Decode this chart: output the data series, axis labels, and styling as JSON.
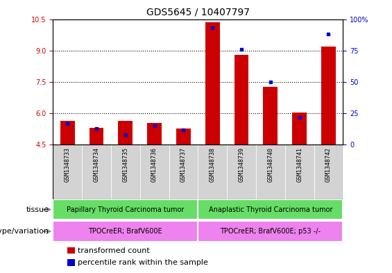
{
  "title": "GDS5645 / 10407797",
  "samples": [
    "GSM1348733",
    "GSM1348734",
    "GSM1348735",
    "GSM1348736",
    "GSM1348737",
    "GSM1348738",
    "GSM1348739",
    "GSM1348740",
    "GSM1348741",
    "GSM1348742"
  ],
  "transformed_count": [
    5.65,
    5.3,
    5.65,
    5.55,
    5.28,
    10.35,
    8.8,
    7.28,
    6.05,
    9.2
  ],
  "percentile_rank": [
    17,
    13,
    8,
    15,
    12,
    93,
    76,
    50,
    22,
    88
  ],
  "ylim": [
    4.5,
    10.5
  ],
  "yticks_left": [
    4.5,
    6.0,
    7.5,
    9.0,
    10.5
  ],
  "yticks_right": [
    0,
    25,
    50,
    75,
    100
  ],
  "bar_color_red": "#cc0000",
  "bar_color_blue": "#0000cc",
  "tissue_groups": [
    {
      "label": "Papillary Thyroid Carcinoma tumor",
      "start": 0,
      "end": 5,
      "color": "#66dd66"
    },
    {
      "label": "Anaplastic Thyroid Carcinoma tumor",
      "start": 5,
      "end": 10,
      "color": "#66dd66"
    }
  ],
  "genotype_groups": [
    {
      "label": "TPOCreER; BrafV600E",
      "start": 0,
      "end": 5,
      "color": "#ee82ee"
    },
    {
      "label": "TPOCreER; BrafV600E; p53 -/-",
      "start": 5,
      "end": 10,
      "color": "#ee82ee"
    }
  ],
  "tissue_label": "tissue",
  "genotype_label": "genotype/variation",
  "legend_red": "transformed count",
  "legend_blue": "percentile rank within the sample",
  "bar_width": 0.5,
  "sample_bg": "#d3d3d3",
  "title_fontsize": 10,
  "tick_fontsize": 7,
  "label_fontsize": 8
}
